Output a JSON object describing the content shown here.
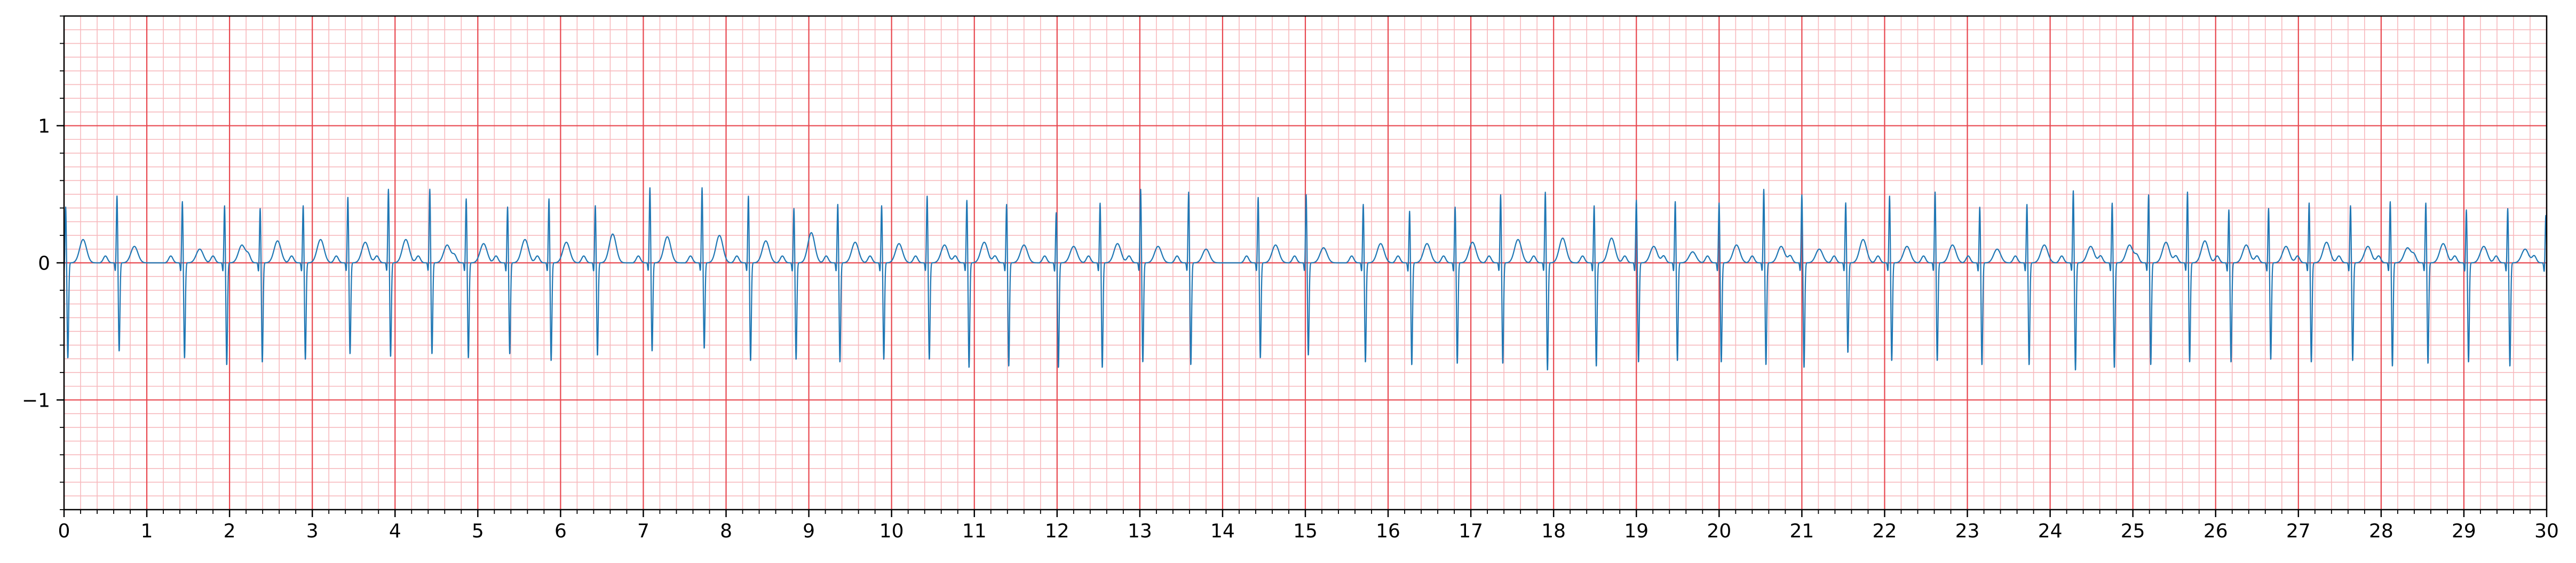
{
  "chart_data": {
    "type": "line",
    "title": "",
    "xlabel": "",
    "ylabel": "",
    "xlim": [
      0,
      30
    ],
    "ylim": [
      -1.8,
      1.8
    ],
    "x_ticks": [
      0,
      1,
      2,
      3,
      4,
      5,
      6,
      7,
      8,
      9,
      10,
      11,
      12,
      13,
      14,
      15,
      16,
      17,
      18,
      19,
      20,
      21,
      22,
      23,
      24,
      25,
      26,
      27,
      28,
      29,
      30
    ],
    "x_tick_labels": [
      "0",
      "1",
      "2",
      "3",
      "4",
      "5",
      "6",
      "7",
      "8",
      "9",
      "10",
      "11",
      "12",
      "13",
      "14",
      "15",
      "16",
      "17",
      "18",
      "19",
      "20",
      "21",
      "22",
      "23",
      "24",
      "25",
      "26",
      "27",
      "28",
      "29",
      "30"
    ],
    "y_ticks": [
      -1,
      0,
      1
    ],
    "y_tick_labels": [
      "−1",
      "0",
      "1"
    ],
    "grid": {
      "major": true,
      "minor": true,
      "major_x_step": 1,
      "major_y_step": 1,
      "minor_x_step": 0.2,
      "minor_y_step": 0.1
    },
    "colors": {
      "signal": "#1f77b4",
      "major_grid": "#e8474f",
      "minor_grid": "#f7b9bd",
      "frame": "#000000"
    },
    "series": [
      {
        "beat_times": [
          0.02,
          0.64,
          1.43,
          1.94,
          2.37,
          2.89,
          3.43,
          3.92,
          4.42,
          4.86,
          5.36,
          5.86,
          6.42,
          7.08,
          7.71,
          8.27,
          8.82,
          9.35,
          9.88,
          10.43,
          10.91,
          11.39,
          11.99,
          12.52,
          13.01,
          13.59,
          14.43,
          15.01,
          15.7,
          16.26,
          16.81,
          17.36,
          17.9,
          18.49,
          19.0,
          19.47,
          20.0,
          20.54,
          21.0,
          21.53,
          22.06,
          22.61,
          23.15,
          23.72,
          24.28,
          24.75,
          25.19,
          25.66,
          26.16,
          26.64,
          27.13,
          27.63,
          28.11,
          28.54,
          29.03,
          29.53,
          29.99
        ],
        "r_peaks": [
          0.42,
          0.5,
          0.46,
          0.43,
          0.41,
          0.43,
          0.49,
          0.55,
          0.55,
          0.48,
          0.42,
          0.48,
          0.43,
          0.56,
          0.56,
          0.5,
          0.41,
          0.44,
          0.43,
          0.5,
          0.47,
          0.44,
          0.38,
          0.45,
          0.55,
          0.53,
          0.49,
          0.51,
          0.44,
          0.39,
          0.42,
          0.51,
          0.53,
          0.43,
          0.47,
          0.46,
          0.45,
          0.55,
          0.51,
          0.45,
          0.5,
          0.53,
          0.42,
          0.44,
          0.54,
          0.45,
          0.51,
          0.53,
          0.4,
          0.41,
          0.45,
          0.43,
          0.46,
          0.45,
          0.4,
          0.41,
          0.35
        ],
        "s_troughs": [
          -0.7,
          -0.65,
          -0.7,
          -0.75,
          -0.73,
          -0.71,
          -0.67,
          -0.69,
          -0.67,
          -0.7,
          -0.67,
          -0.72,
          -0.68,
          -0.65,
          -0.63,
          -0.72,
          -0.71,
          -0.73,
          -0.71,
          -0.71,
          -0.77,
          -0.76,
          -0.77,
          -0.77,
          -0.73,
          -0.75,
          -0.7,
          -0.68,
          -0.73,
          -0.75,
          -0.74,
          -0.74,
          -0.79,
          -0.76,
          -0.73,
          -0.72,
          -0.73,
          -0.75,
          -0.77,
          -0.66,
          -0.72,
          -0.72,
          -0.75,
          -0.75,
          -0.79,
          -0.77,
          -0.75,
          -0.73,
          -0.73,
          -0.71,
          -0.73,
          -0.72,
          -0.76,
          -0.74,
          -0.73,
          -0.76,
          -0.13
        ],
        "t_waves": [
          0.17,
          0.12,
          0.1,
          0.13,
          0.16,
          0.17,
          0.15,
          0.17,
          0.13,
          0.14,
          0.17,
          0.15,
          0.21,
          0.19,
          0.2,
          0.16,
          0.22,
          0.15,
          0.14,
          0.13,
          0.15,
          0.13,
          0.12,
          0.14,
          0.12,
          0.1,
          0.13,
          0.11,
          0.14,
          0.14,
          0.15,
          0.17,
          0.18,
          0.18,
          0.12,
          0.08,
          0.13,
          0.12,
          0.1,
          0.17,
          0.12,
          0.13,
          0.1,
          0.13,
          0.12,
          0.13,
          0.15,
          0.16,
          0.13,
          0.12,
          0.15,
          0.12,
          0.11,
          0.14,
          0.12,
          0.1,
          0.14
        ]
      }
    ]
  }
}
